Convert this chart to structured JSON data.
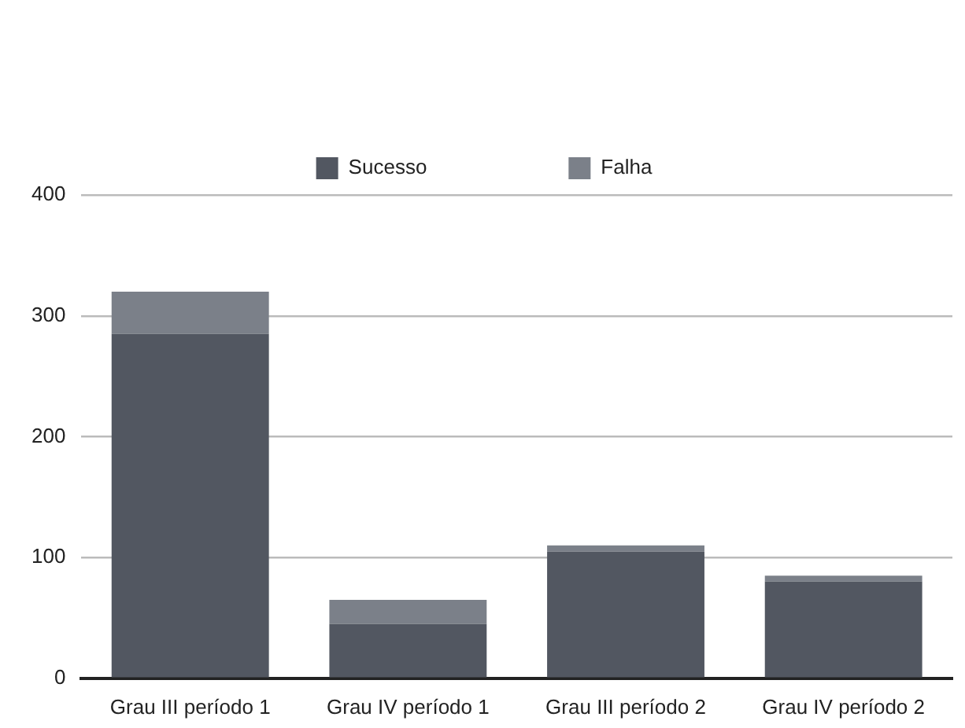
{
  "chart_data": {
    "type": "bar",
    "stacked": true,
    "categories": [
      "Grau III período 1",
      "Grau IV período 1",
      "Grau III período 2",
      "Grau IV período 2"
    ],
    "series": [
      {
        "name": "Sucesso",
        "color": "#525761",
        "values": [
          285,
          45,
          105,
          80
        ]
      },
      {
        "name": "Falha",
        "color": "#7b8089",
        "values": [
          35,
          20,
          5,
          5
        ]
      }
    ],
    "ylim": [
      0,
      400
    ],
    "yticks": [
      0,
      100,
      200,
      300,
      400
    ],
    "grid": "y",
    "legend": "top"
  }
}
